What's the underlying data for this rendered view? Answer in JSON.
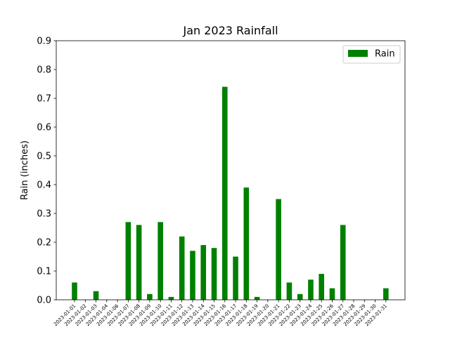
{
  "chart_data": {
    "type": "bar",
    "title": "Jan 2023 Rainfall",
    "xlabel": "",
    "ylabel": "Rain (inches)",
    "ylim": [
      0,
      0.9
    ],
    "yticks": [
      "0.0",
      "0.1",
      "0.2",
      "0.3",
      "0.4",
      "0.5",
      "0.6",
      "0.7",
      "0.8",
      "0.9"
    ],
    "grid": false,
    "legend_position": "top-right",
    "categories": [
      "2023-01-01",
      "2023-01-02",
      "2023-01-03",
      "2023-01-04",
      "2023-01-06",
      "2023-01-07",
      "2023-01-08",
      "2023-01-09",
      "2023-01-10",
      "2023-01-11",
      "2023-01-12",
      "2023-01-13",
      "2023-01-14",
      "2023-01-15",
      "2023-01-16",
      "2023-01-17",
      "2023-01-18",
      "2023-01-19",
      "2023-01-20",
      "2023-01-21",
      "2023-01-22",
      "2023-01-23",
      "2023-01-24",
      "2023-01-25",
      "2023-01-26",
      "2023-01-27",
      "2023-01-28",
      "2023-01-29",
      "2023-01-30",
      "2023-01-31"
    ],
    "series": [
      {
        "name": "Rain",
        "color": "#008000",
        "values": [
          0.06,
          0.0,
          0.03,
          0.0,
          0.0,
          0.27,
          0.26,
          0.02,
          0.27,
          0.01,
          0.22,
          0.17,
          0.19,
          0.18,
          0.74,
          0.15,
          0.39,
          0.01,
          0.0,
          0.35,
          0.06,
          0.02,
          0.07,
          0.09,
          0.04,
          0.26,
          0.0,
          0.0,
          0.0,
          0.04
        ]
      }
    ]
  }
}
